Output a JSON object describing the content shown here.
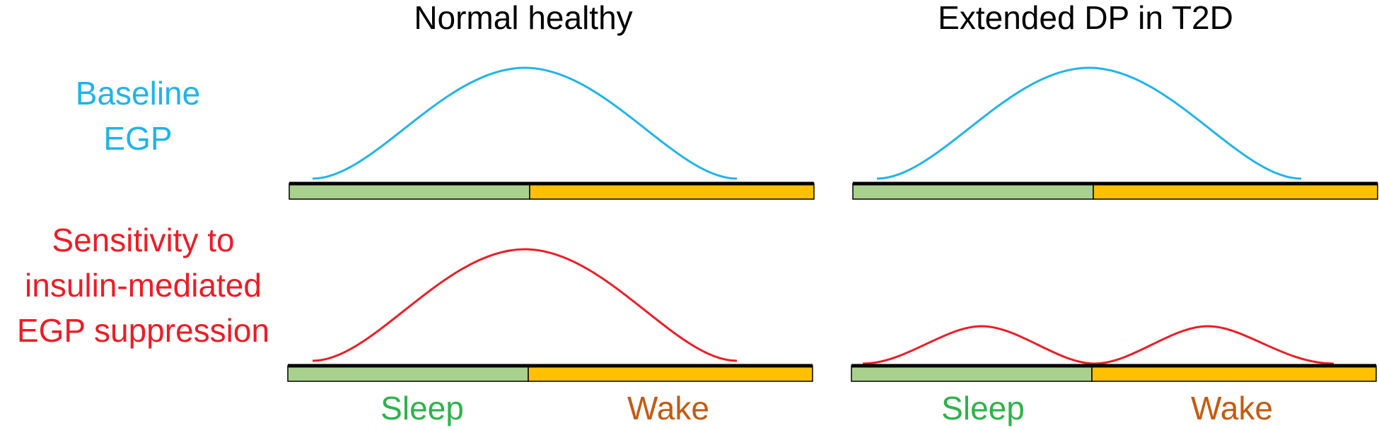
{
  "columns": [
    {
      "title": "Normal healthy"
    },
    {
      "title": "Extended DP in T2D"
    }
  ],
  "rows": [
    {
      "label_lines": [
        "Baseline",
        "EGP"
      ]
    },
    {
      "label_lines": [
        "Sensitivity to",
        "insulin-mediated",
        "EGP suppression"
      ]
    }
  ],
  "phases": {
    "sleep": "Sleep",
    "wake": "Wake"
  },
  "curves": {
    "baseline_egp": {
      "shape": "single-peak",
      "peak_relative_height": 1.0
    },
    "sensitivity_normal": {
      "shape": "single-peak",
      "peak_relative_height": 1.0
    },
    "sensitivity_t2d": {
      "shape": "double-peak",
      "peak_relative_height": 0.33
    }
  },
  "colors": {
    "baseline": "#1FB4EA",
    "sensitivity": "#EE1C25",
    "sleep_bar": "#A9D18E",
    "wake_bar": "#FFC000",
    "sleep_text": "#2DB34A",
    "wake_text": "#C55A11",
    "axis": "#000000"
  }
}
